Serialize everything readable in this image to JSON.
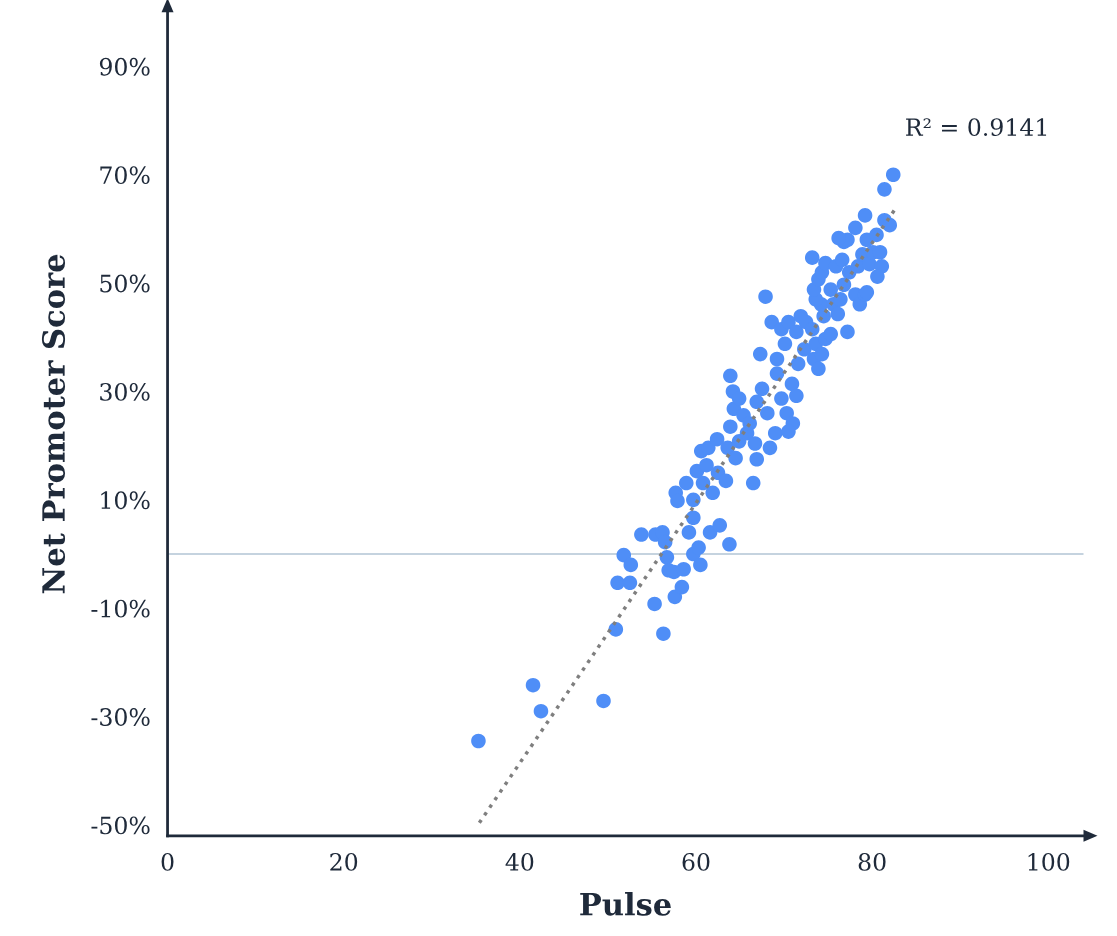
{
  "chart_data": {
    "type": "scatter",
    "xlabel": "Pulse",
    "ylabel": "Net Promoter Score",
    "xlim": [
      0,
      104
    ],
    "ylim": [
      -52,
      100
    ],
    "xticks": [
      0,
      20,
      40,
      60,
      80,
      100
    ],
    "yticks": [
      {
        "value": 90,
        "label": "90%"
      },
      {
        "value": 70,
        "label": "70%"
      },
      {
        "value": 50,
        "label": "50%"
      },
      {
        "value": 30,
        "label": "30%"
      },
      {
        "value": 10,
        "label": "10%"
      },
      {
        "value": -10,
        "label": "-10%"
      },
      {
        "value": -30,
        "label": "-30%"
      },
      {
        "value": -50,
        "label": "-50%"
      }
    ],
    "grid": false,
    "legend": false,
    "marker": "circle",
    "ref_lines": [
      {
        "axis": "y",
        "value": 0,
        "color": "#c5d3df",
        "line_style": "solid"
      }
    ],
    "annotations": [
      "R² = 0.9141"
    ],
    "series": [
      {
        "color": "#4f8ef7",
        "x": [
          35.3,
          41.5,
          42.4,
          49.5,
          50.9,
          56.3,
          55.3,
          57.6,
          51.1,
          52.5,
          51.8,
          52.6,
          53.8,
          55.4,
          56.2,
          56.5,
          56.7,
          56.9,
          57.5,
          58.4,
          58.6,
          59.7,
          60.5,
          60.3,
          59.2,
          59.7,
          61.6,
          62.7,
          63.8,
          57.7,
          57.9,
          58.9,
          60.1,
          60.6,
          61.4,
          61.2,
          59.7,
          60.8,
          61.9,
          62.5,
          63.4,
          62.4,
          63.6,
          64.5,
          64.9,
          63.9,
          64.3,
          64.2,
          63.9,
          64.9,
          65.4,
          65.8,
          66.5,
          66.9,
          66.7,
          66.1,
          66.9,
          67.5,
          68.1,
          68.4,
          69.0,
          67.3,
          67.9,
          68.6,
          69.2,
          69.7,
          70.3,
          71.0,
          70.5,
          70.9,
          71.4,
          71.6,
          72.3,
          69.2,
          70.1,
          69.7,
          70.5,
          71.4,
          71.9,
          72.5,
          73.2,
          73.6,
          73.4,
          73.9,
          74.3,
          74.7,
          75.3,
          74.5,
          74.2,
          73.6,
          73.4,
          73.9,
          73.2,
          74.3,
          74.7,
          75.3,
          75.6,
          76.1,
          76.4,
          76.8,
          77.2,
          75.9,
          76.6,
          77.4,
          78.1,
          78.6,
          79.2,
          78.4,
          78.9,
          79.7,
          80.1,
          79.4,
          78.1,
          79.2,
          80.5,
          80.9,
          81.1,
          80.6,
          79.4,
          81.4,
          82.0,
          81.4,
          82.4,
          76.8,
          77.2,
          76.2
        ],
        "values": [
          -34.5,
          -24.2,
          -29.0,
          -27.1,
          -13.9,
          -14.7,
          -9.2,
          -7.9,
          -5.3,
          -5.3,
          -0.2,
          -2.0,
          3.6,
          3.6,
          4.0,
          2.2,
          -0.6,
          -3.0,
          -3.3,
          -6.1,
          -2.8,
          0.0,
          -2.0,
          1.2,
          4.0,
          6.7,
          4.0,
          5.3,
          1.8,
          11.3,
          9.8,
          13.1,
          15.3,
          19.0,
          19.6,
          16.4,
          10.0,
          13.1,
          11.3,
          15.0,
          13.5,
          21.2,
          19.6,
          17.7,
          20.8,
          23.5,
          26.8,
          30.0,
          32.9,
          28.7,
          25.6,
          22.3,
          13.1,
          17.5,
          20.4,
          24.1,
          28.1,
          30.5,
          26.0,
          19.6,
          22.3,
          36.9,
          47.5,
          42.8,
          33.3,
          28.7,
          26.0,
          24.1,
          22.6,
          31.4,
          29.2,
          35.1,
          37.8,
          36.0,
          38.8,
          41.5,
          42.8,
          41.0,
          43.9,
          42.8,
          41.5,
          38.8,
          36.0,
          34.2,
          36.9,
          39.7,
          40.6,
          43.9,
          46.1,
          47.0,
          48.8,
          50.7,
          54.7,
          52.0,
          53.7,
          48.8,
          46.1,
          44.3,
          47.0,
          49.7,
          41.0,
          53.1,
          54.3,
          52.0,
          47.9,
          46.1,
          47.9,
          53.1,
          55.3,
          53.5,
          55.7,
          58.0,
          60.2,
          62.5,
          58.9,
          55.7,
          53.1,
          51.2,
          48.3,
          61.6,
          60.7,
          67.3,
          70.0,
          57.6,
          58.0,
          58.3
        ]
      },
      {
        "type": "line",
        "color": "#7f7f7f",
        "line_style": "dotted",
        "marker": "none",
        "x": [
          35.4,
          82.5
        ],
        "values": [
          -49.6,
          63.4
        ]
      }
    ]
  }
}
